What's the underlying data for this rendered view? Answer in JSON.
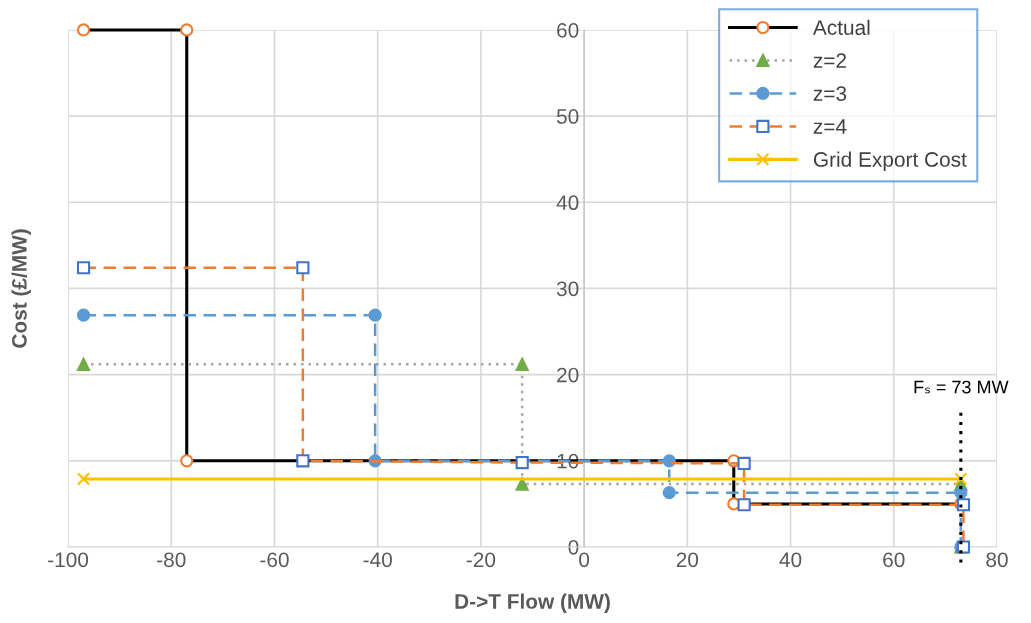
{
  "chart_data": {
    "type": "line",
    "xlabel": "D->T Flow (MW)",
    "ylabel": "Cost (£/MW)",
    "xlim": [
      -100,
      80
    ],
    "xticks": [
      -100,
      -80,
      -60,
      -40,
      -20,
      0,
      20,
      40,
      60,
      80
    ],
    "ylim": [
      0,
      60
    ],
    "yticks": [
      0,
      10,
      20,
      30,
      40,
      50,
      60
    ],
    "grid": true,
    "legend": "top right",
    "series": [
      {
        "name": "Actual",
        "color": "#000000",
        "marker": "circle",
        "line_style": "solid",
        "x": [
          -97,
          -77,
          -77,
          29,
          29,
          73
        ],
        "values": [
          60,
          60,
          10,
          10,
          5,
          5
        ]
      },
      {
        "name": "z=2",
        "color": "#a5a5a5",
        "marker": "triangle",
        "line_style": "dotted",
        "x": [
          -97,
          -12,
          -12,
          73,
          73
        ],
        "values": [
          21.2,
          21.2,
          7.3,
          7.3,
          0
        ]
      },
      {
        "name": "z=3",
        "color": "#5b9bd5",
        "marker": "circle",
        "line_style": "dashed",
        "x": [
          -97,
          -40.5,
          -40.5,
          16.5,
          16.5,
          73,
          73
        ],
        "values": [
          26.9,
          26.9,
          10,
          10,
          6.3,
          6.3,
          0
        ]
      },
      {
        "name": "z=4",
        "color": "#ed7d31",
        "marker": "square",
        "line_style": "dashed",
        "x": [
          -97,
          -54.5,
          -54.5,
          -12,
          31,
          31,
          73.5,
          73.5
        ],
        "values": [
          32.4,
          32.4,
          10,
          9.8,
          9.7,
          4.9,
          4.9,
          0
        ]
      },
      {
        "name": "Grid Export Cost",
        "color": "#ffc000",
        "marker": "cross",
        "line_style": "solid",
        "x": [
          -97,
          73
        ],
        "values": [
          7.9,
          7.9
        ]
      }
    ],
    "ref_lines": [
      {
        "axis": "x",
        "value": 73,
        "label": "Fₛ = 73 MW",
        "color": "#000000",
        "line_style": "dotted"
      }
    ]
  }
}
